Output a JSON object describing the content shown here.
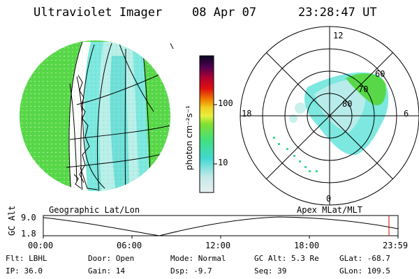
{
  "header": {
    "instrument": "Ultraviolet Imager",
    "date": "08 Apr 07",
    "time": "23:28:47 UT"
  },
  "colorbar": {
    "unit_label": "photon cm⁻²s⁻¹",
    "ticks": [
      "100",
      "10"
    ]
  },
  "left_panel": {
    "caption": "Geographic Lat/Lon"
  },
  "right_panel": {
    "caption": "Apex MLat/MLT",
    "mlt_labels": {
      "top": "12",
      "left": "18",
      "right": "6",
      "bottom": "0"
    },
    "mlat_labels": [
      "60",
      "70",
      "80"
    ]
  },
  "altitude_plot": {
    "ylabel": "GC Alt",
    "yticks": [
      "9.0",
      "1.8"
    ],
    "xticks": [
      "00:00",
      "06:00",
      "12:00",
      "18:00",
      "23:59"
    ],
    "marker_color": "#d00000"
  },
  "status": {
    "flt": "Flt: LBHL",
    "ip": "IP: 36.0",
    "door": "Door: Open",
    "gain": "Gain: 14",
    "mode": "Mode: Normal",
    "dsp": "Dsp:   -9.7",
    "gcalt": "GC Alt: 5.3 Re",
    "seq": "Seq: 39",
    "glat": "GLat: -68.7",
    "glon": "GLon: 109.5"
  }
}
